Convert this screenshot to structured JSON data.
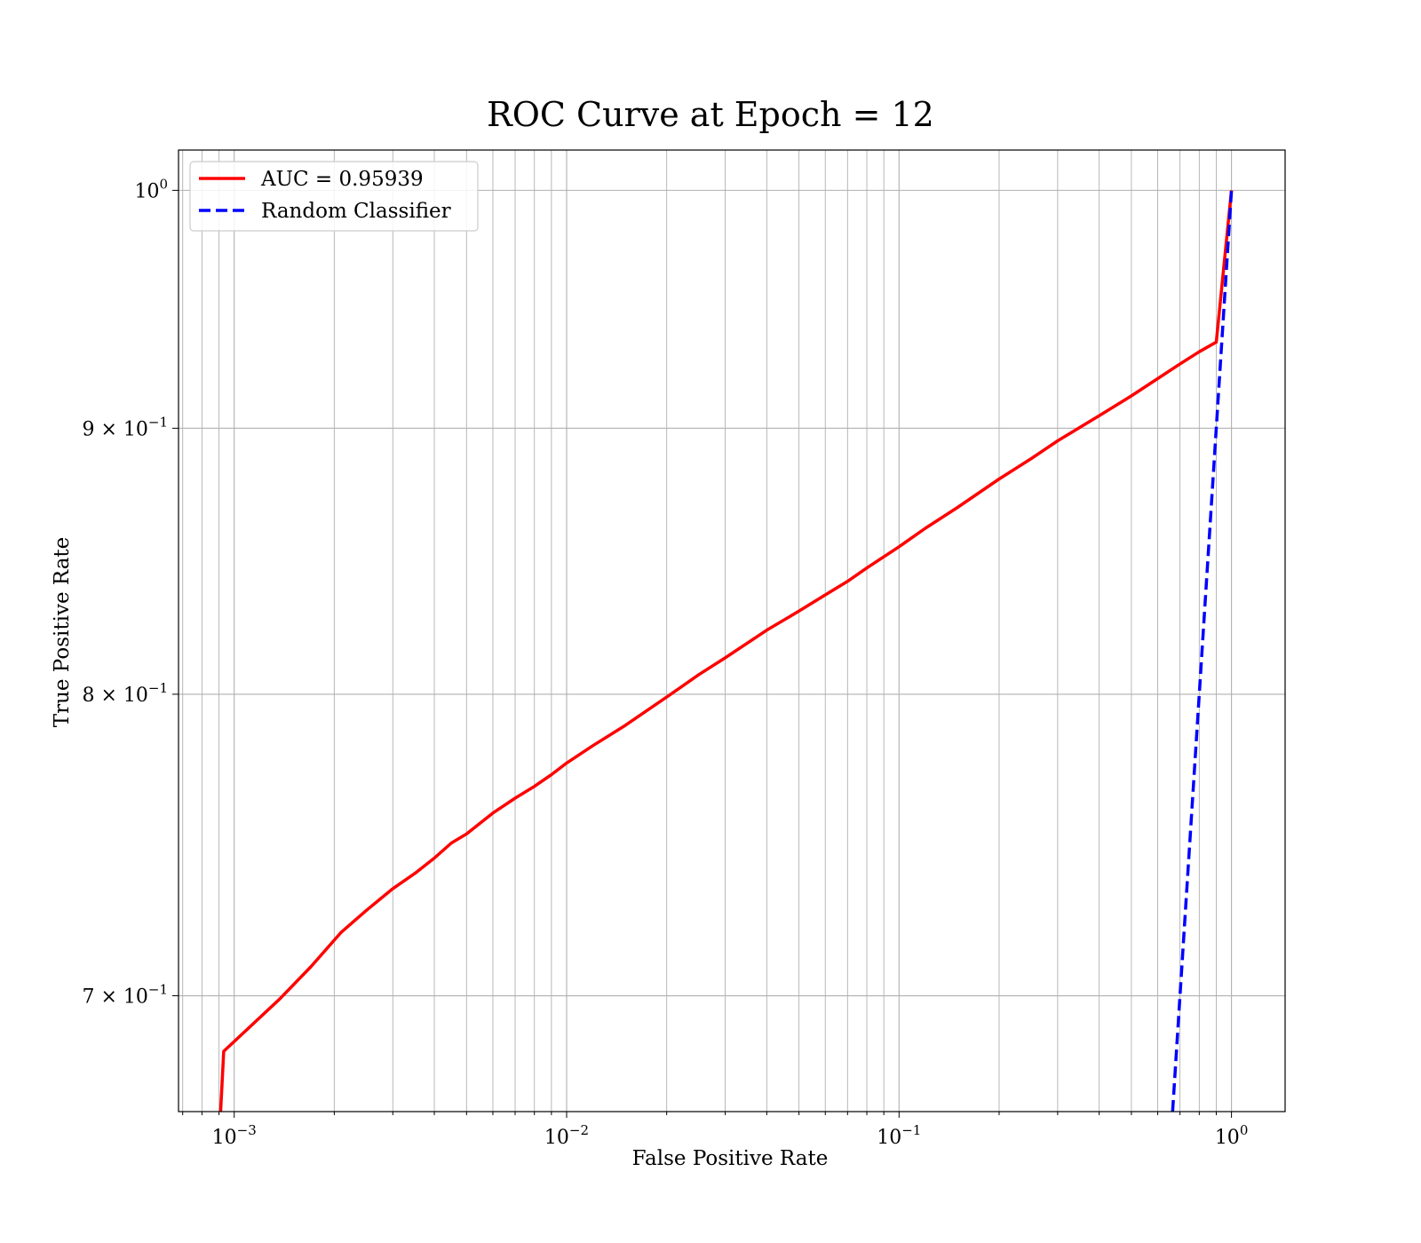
{
  "chart_data": {
    "type": "line",
    "title": "ROC Curve at Epoch = 12",
    "xlabel": "False Positive Rate",
    "ylabel": "True Positive Rate",
    "xscale": "log",
    "yscale": "log",
    "xlim": [
      0.00068,
      1.45
    ],
    "ylim": [
      0.665,
      1.018
    ],
    "grid": "on (major and minor)",
    "legend_position": "top-left",
    "x_ticks": [
      {
        "value": 0.001,
        "base": "10",
        "exp": "−3"
      },
      {
        "value": 0.01,
        "base": "10",
        "exp": "−2"
      },
      {
        "value": 0.1,
        "base": "10",
        "exp": "−1"
      },
      {
        "value": 1,
        "base": "10",
        "exp": "0"
      }
    ],
    "y_ticks": [
      {
        "value": 1.0,
        "base": "10",
        "exp": "0"
      },
      {
        "value": 0.9,
        "base": "9 × 10",
        "exp": "−1"
      },
      {
        "value": 0.8,
        "base": "8 × 10",
        "exp": "−1"
      },
      {
        "value": 0.7,
        "base": "7 × 10",
        "exp": "−1"
      }
    ],
    "series": [
      {
        "name": "AUC = 0.95939",
        "color": "#ff0000",
        "style": "solid",
        "x": [
          0.00091,
          0.00093,
          0.00137,
          0.0017,
          0.0021,
          0.0025,
          0.003,
          0.0035,
          0.004,
          0.0045,
          0.005,
          0.006,
          0.007,
          0.008,
          0.009,
          0.01,
          0.012,
          0.015,
          0.02,
          0.025,
          0.03,
          0.04,
          0.05,
          0.06,
          0.07,
          0.08,
          0.1,
          0.12,
          0.15,
          0.2,
          0.25,
          0.3,
          0.4,
          0.5,
          0.6,
          0.7,
          0.8,
          0.9,
          1.0
        ],
        "y": [
          0.665,
          0.683,
          0.699,
          0.709,
          0.72,
          0.727,
          0.734,
          0.739,
          0.744,
          0.749,
          0.752,
          0.759,
          0.764,
          0.768,
          0.772,
          0.776,
          0.782,
          0.789,
          0.799,
          0.807,
          0.813,
          0.823,
          0.83,
          0.836,
          0.841,
          0.846,
          0.854,
          0.861,
          0.869,
          0.88,
          0.888,
          0.895,
          0.905,
          0.913,
          0.92,
          0.926,
          0.931,
          0.935,
          1.0
        ]
      },
      {
        "name": "Random Classifier",
        "color": "#0000ff",
        "style": "dashed",
        "x": [
          0.665,
          1.0
        ],
        "y": [
          0.665,
          1.0
        ]
      }
    ]
  }
}
